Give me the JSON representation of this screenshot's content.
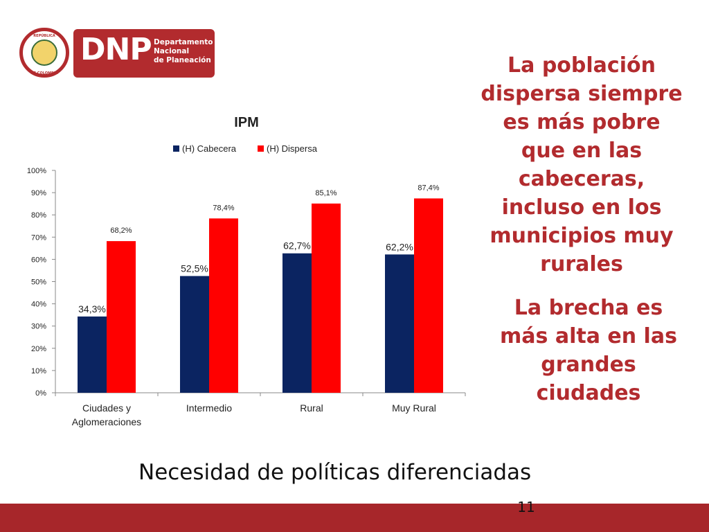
{
  "logo": {
    "seal_top_text": "REPÚBLICA",
    "seal_bottom_text": "DE COLOMBIA",
    "acronym": "DNP",
    "name_line1": "Departamento",
    "name_line2": "Nacional",
    "name_line3": "de Planeación",
    "brand_color": "#b22b2e"
  },
  "chart_data": {
    "type": "bar",
    "title": "IPM",
    "categories": [
      "Ciudades y Aglomeraciones",
      "Intermedio",
      "Rural",
      "Muy Rural"
    ],
    "category_lines": [
      [
        "Ciudades y",
        "Aglomeraciones"
      ],
      [
        "Intermedio"
      ],
      [
        "Rural"
      ],
      [
        "Muy Rural"
      ]
    ],
    "series": [
      {
        "name": "(H) Cabecera",
        "color": "#0b2461",
        "values": [
          34.3,
          52.5,
          62.7,
          62.2
        ],
        "labels": [
          "34,3%",
          "52,5%",
          "62,7%",
          "62,2%"
        ]
      },
      {
        "name": "(H) Dispersa",
        "color": "#ff0000",
        "values": [
          68.2,
          78.4,
          85.1,
          87.4
        ],
        "labels": [
          "68,2%",
          "78,4%",
          "85,1%",
          "87,4%"
        ]
      }
    ],
    "ylim": [
      0,
      100
    ],
    "yticks": [
      "0%",
      "10%",
      "20%",
      "30%",
      "40%",
      "50%",
      "60%",
      "70%",
      "80%",
      "90%",
      "100%"
    ],
    "xlabel": "",
    "ylabel": "",
    "legend": "top",
    "grid": false
  },
  "side": {
    "lines_1": [
      "La población",
      "dispersa siempre",
      "es más pobre",
      "que en las",
      "cabeceras,",
      "incluso en los",
      "municipios muy",
      "rurales"
    ],
    "lines_2": [
      "La brecha es",
      "más alta en las",
      "grandes",
      "ciudades"
    ],
    "color": "#b22b2e"
  },
  "footer": {
    "text": "Necesidad de políticas diferenciadas",
    "page_number": "11",
    "bar_color": "#a7262a"
  }
}
